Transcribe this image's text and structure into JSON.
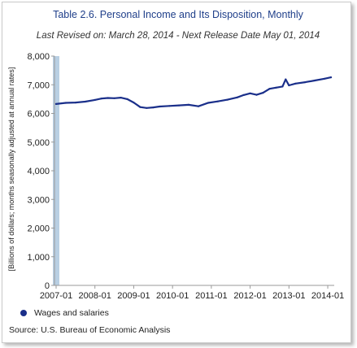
{
  "chart_data": {
    "type": "line",
    "title": "Table 2.6. Personal Income and Its Disposition, Monthly",
    "subtitle": "Last Revised on: March 28, 2014 - Next Release Date May 01, 2014",
    "ylabel": "[Billions of dollars; months seasonally adjusted at annual rates]",
    "xlabel": "",
    "ylim": [
      0,
      8000
    ],
    "yticks": [
      "0",
      "1,000",
      "2,000",
      "3,000",
      "4,000",
      "5,000",
      "6,000",
      "7,000",
      "8,000"
    ],
    "xticks": [
      "2007-01",
      "2008-01",
      "2009-01",
      "2010-01",
      "2011-01",
      "2012-01",
      "2013-01",
      "2014-01"
    ],
    "grid": false,
    "legend_position": "bottom-left",
    "highlight_band": "2007-01",
    "series": [
      {
        "name": "Wages and salaries",
        "color": "#1a2f8a",
        "points": [
          [
            "2007-01",
            6330
          ],
          [
            "2007-04",
            6370
          ],
          [
            "2007-07",
            6380
          ],
          [
            "2007-10",
            6410
          ],
          [
            "2008-01",
            6470
          ],
          [
            "2008-03",
            6520
          ],
          [
            "2008-05",
            6540
          ],
          [
            "2008-07",
            6530
          ],
          [
            "2008-09",
            6550
          ],
          [
            "2008-11",
            6500
          ],
          [
            "2009-01",
            6380
          ],
          [
            "2009-03",
            6220
          ],
          [
            "2009-05",
            6190
          ],
          [
            "2009-07",
            6210
          ],
          [
            "2009-09",
            6240
          ],
          [
            "2009-12",
            6260
          ],
          [
            "2010-03",
            6280
          ],
          [
            "2010-06",
            6300
          ],
          [
            "2010-09",
            6250
          ],
          [
            "2010-12",
            6370
          ],
          [
            "2011-03",
            6420
          ],
          [
            "2011-06",
            6480
          ],
          [
            "2011-09",
            6560
          ],
          [
            "2011-11",
            6640
          ],
          [
            "2012-01",
            6700
          ],
          [
            "2012-03",
            6650
          ],
          [
            "2012-05",
            6720
          ],
          [
            "2012-07",
            6860
          ],
          [
            "2012-09",
            6900
          ],
          [
            "2012-11",
            6940
          ],
          [
            "2012-12",
            7190
          ],
          [
            "2013-01",
            6980
          ],
          [
            "2013-03",
            7040
          ],
          [
            "2013-06",
            7090
          ],
          [
            "2013-09",
            7150
          ],
          [
            "2013-12",
            7210
          ],
          [
            "2014-02",
            7260
          ]
        ]
      }
    ]
  },
  "source": "Source: U.S. Bureau of Economic Analysis"
}
